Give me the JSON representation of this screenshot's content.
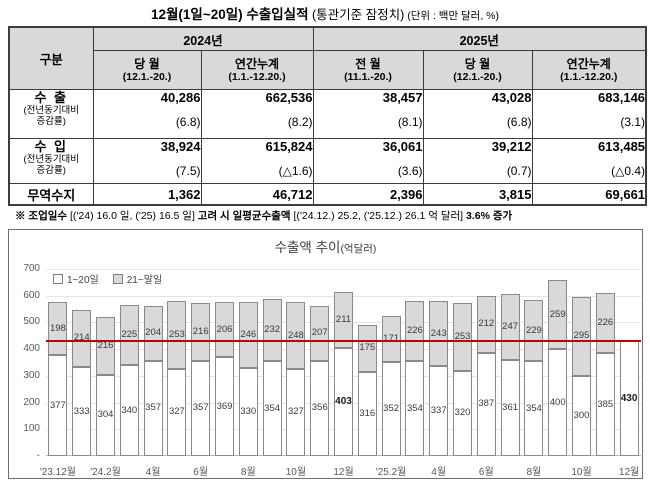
{
  "title": {
    "main": "12월(1일~20일) 수출입실적",
    "sub": " (통관기준 잠정치)",
    "unit": "  (단위 : 백만 달러, %)"
  },
  "table": {
    "corner_label": "구분",
    "col_groups": [
      {
        "label": "2024년",
        "cols": [
          {
            "line1": "당 월",
            "line2": "(12.1.-20.)"
          },
          {
            "line1": "연간누계",
            "line2": "(1.1.-12.20.)"
          }
        ]
      },
      {
        "label": "2025년",
        "cols": [
          {
            "line1": "전 월",
            "line2": "(11.1.-20.)"
          },
          {
            "line1": "당 월",
            "line2": "(12.1.-20.)"
          },
          {
            "line1": "연간누계",
            "line2": "(1.1.-12.20.)"
          }
        ]
      }
    ],
    "rows": [
      {
        "label": "수 출",
        "sublabel": "(전년동기대비\n증감률)",
        "values": [
          "40,286",
          "662,536",
          "38,457",
          "43,028",
          "683,146"
        ],
        "growth": [
          "(6.8)",
          "(8.2)",
          "(8.1)",
          "(6.8)",
          "(3.1)"
        ]
      },
      {
        "label": "수 입",
        "sublabel": "(전년동기대비\n증감률)",
        "values": [
          "38,924",
          "615,824",
          "36,061",
          "39,212",
          "613,485"
        ],
        "growth": [
          "(7.5)",
          "(△1.6)",
          "(3.6)",
          "(0.7)",
          "(△0.4)"
        ]
      },
      {
        "label": "무역수지",
        "values": [
          "1,362",
          "46,712",
          "2,396",
          "3,815",
          "69,661"
        ]
      }
    ]
  },
  "footnote": {
    "seg0": "※ 조업일수 ",
    "seg1": "[('24) 16.0 일, ('25) 16.5 일] ",
    "seg2": "고려 시 일평균수출액 ",
    "seg3": "[('24.12.) 25.2, ('25.12.) 26.1 억 달러] ",
    "seg4": "3.6% 증가"
  },
  "chart_data": {
    "type": "bar",
    "stacked": true,
    "title": "수출액 추이",
    "title_unit": "(억달러)",
    "xlabel": "",
    "ylabel": "",
    "legend": [
      "1~20일",
      "21~말일"
    ],
    "legend_position": "top-left",
    "grid": true,
    "ylim": [
      0,
      700
    ],
    "y_ticks": [
      700,
      600,
      500,
      400,
      300,
      200,
      100,
      "-"
    ],
    "x_labels": [
      "'23.12월",
      "",
      "'24.2월",
      "",
      "4월",
      "",
      "6월",
      "",
      "8월",
      "",
      "10월",
      "",
      "12월",
      "",
      "'25.2월",
      "",
      "4월",
      "",
      "6월",
      "",
      "8월",
      "",
      "10월",
      "",
      "12월"
    ],
    "series": [
      {
        "name": "1~20일",
        "values": [
          377,
          333,
          304,
          340,
          357,
          327,
          357,
          369,
          330,
          354,
          327,
          356,
          403,
          316,
          352,
          354,
          337,
          320,
          387,
          361,
          354,
          400,
          300,
          385,
          430
        ]
      },
      {
        "name": "21~말일",
        "values": [
          198,
          214,
          216,
          225,
          204,
          253,
          216,
          206,
          246,
          232,
          248,
          207,
          211,
          175,
          171,
          226,
          243,
          253,
          212,
          247,
          229,
          259,
          295,
          226,
          null
        ]
      }
    ],
    "bold_indices": [
      12,
      24
    ],
    "ref_line": 430,
    "ref_line_color": "#c00000",
    "colors": {
      "first": "#ffffff",
      "second": "#d9d9d9",
      "border": "#8a8a8a"
    }
  }
}
